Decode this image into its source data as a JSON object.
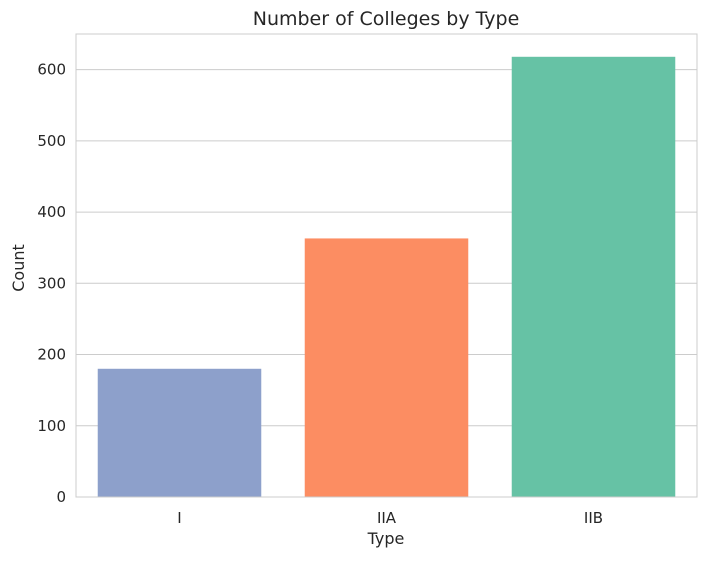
{
  "chart_data": {
    "type": "bar",
    "title": "Number of Colleges by Type",
    "xlabel": "Type",
    "ylabel": "Count",
    "categories": [
      "I",
      "IIA",
      "IIB"
    ],
    "values": [
      180,
      363,
      618
    ],
    "colors": [
      "#8da0cb",
      "#fc8d62",
      "#66c2a5"
    ],
    "ylim": [
      0,
      650
    ],
    "yticks": [
      0,
      100,
      200,
      300,
      400,
      500,
      600
    ],
    "grid": true,
    "grid_axis": "y",
    "legend": "none"
  },
  "style": {
    "background": "#ffffff",
    "grid_color": "#cccccc",
    "spine_color": "#cccccc",
    "text_color": "#262626"
  }
}
